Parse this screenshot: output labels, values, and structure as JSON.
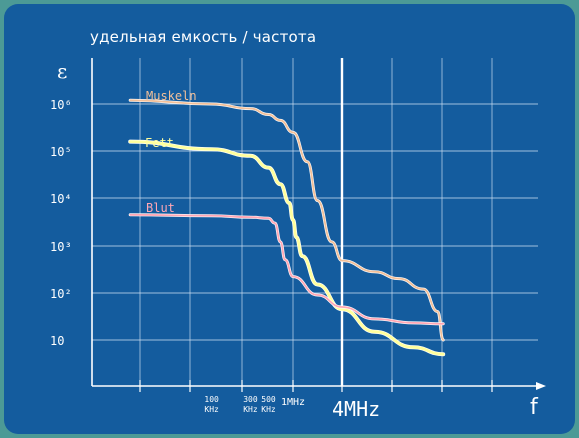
{
  "chart_data": {
    "type": "line",
    "title": "удельная емкость / частота",
    "ylabel": "ε",
    "xlabel": "f",
    "y_scale": "log",
    "y_ticks": [
      "10⁶",
      "10⁵",
      "10⁴",
      "10³",
      "10²",
      "10"
    ],
    "x_ticks": [
      {
        "top": "100",
        "bottom": "KHz",
        "hz": 100000
      },
      {
        "top": "300",
        "bottom": "KHz",
        "hz": 300000
      },
      {
        "top": "500",
        "bottom": "KHz",
        "hz": 500000
      },
      {
        "top": "1MHz",
        "bottom": "",
        "hz": 1000000
      }
    ],
    "x_highlight": {
      "label": "4MHz",
      "hz": 4000000
    },
    "grid": true,
    "series": [
      {
        "name": "Muskeln",
        "color": "#f2c09a",
        "x": [
          10000,
          100000,
          300000,
          500000,
          700000,
          1000000,
          1500000,
          2000000,
          3000000,
          4000000,
          10000000,
          20000000,
          40000000,
          60000000,
          70000000
        ],
        "y": [
          1200000,
          1000000,
          800000,
          600000,
          450000,
          250000,
          60000,
          9000,
          1200,
          480,
          280,
          200,
          120,
          40,
          10
        ]
      },
      {
        "name": "Fett",
        "color": "#ffff9e",
        "x": [
          10000,
          100000,
          300000,
          500000,
          700000,
          900000,
          1000000,
          1100000,
          1300000,
          2000000,
          4000000,
          10000000,
          30000000,
          70000000
        ],
        "y": [
          160000,
          110000,
          80000,
          45000,
          20000,
          8000,
          3500,
          1500,
          600,
          150,
          45,
          15,
          7,
          5
        ]
      },
      {
        "name": "Blut",
        "color": "#ffa7b5",
        "x": [
          10000,
          100000,
          300000,
          500000,
          600000,
          700000,
          800000,
          1000000,
          2000000,
          4000000,
          10000000,
          30000000,
          70000000
        ],
        "y": [
          4500,
          4300,
          4000,
          3800,
          3000,
          1200,
          500,
          220,
          90,
          50,
          28,
          23,
          22
        ]
      }
    ]
  }
}
